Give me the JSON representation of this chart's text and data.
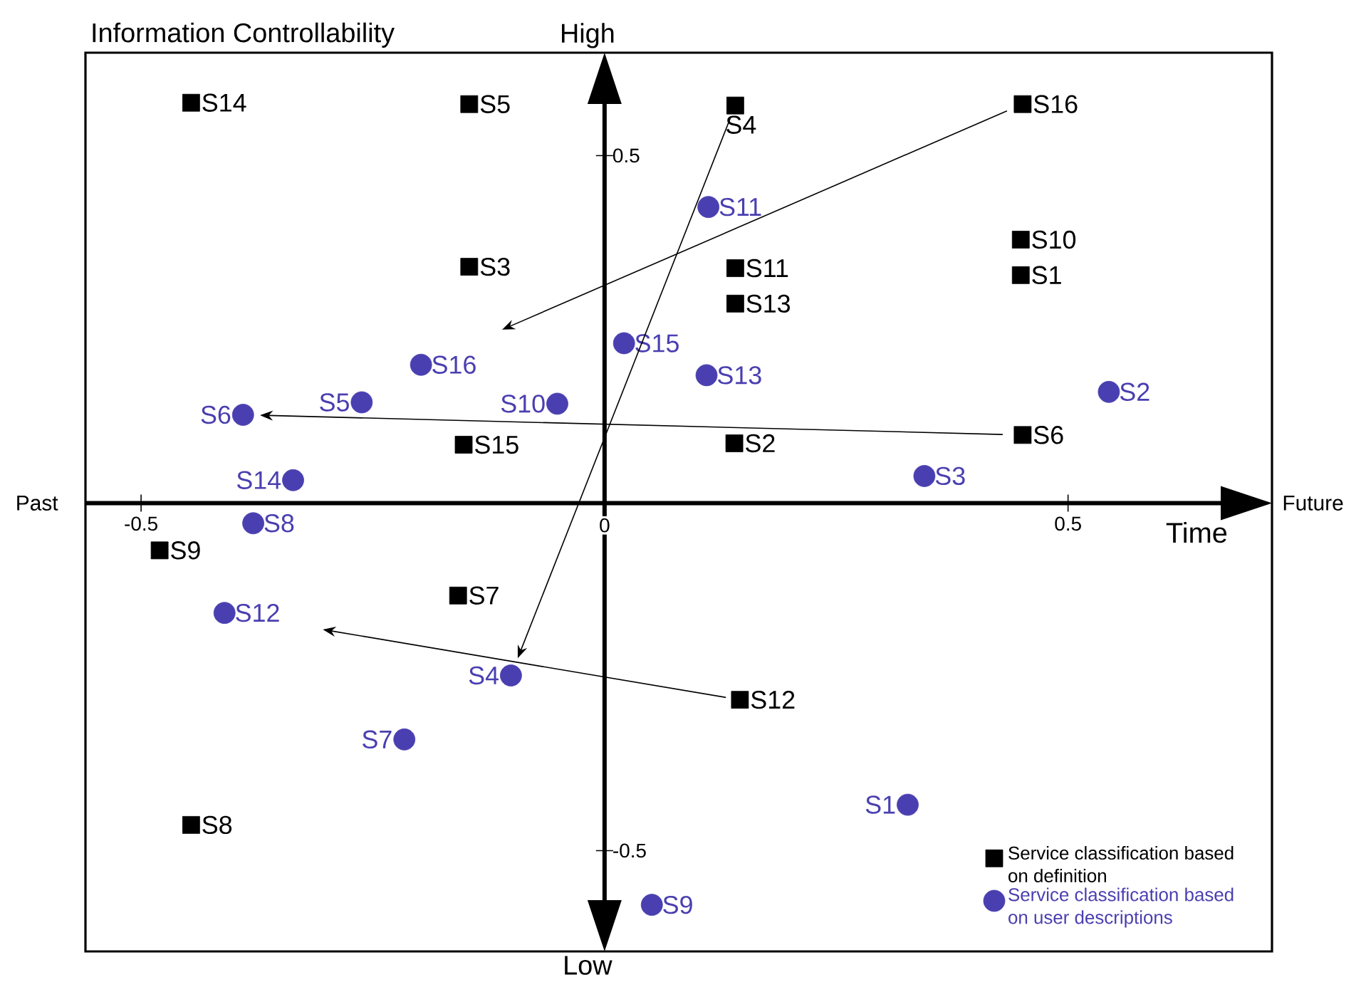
{
  "chart_data": {
    "type": "scatter",
    "xlabel": "Time",
    "ylabel": "Information Controllability",
    "xlim": [
      -0.56,
      0.72
    ],
    "ylim": [
      -0.645,
      0.648
    ],
    "xticks": [
      -0.5,
      0,
      0.5
    ],
    "yticks": [
      -0.5,
      0.5
    ],
    "grid": false,
    "legend": "bottom right",
    "annotations": [
      "Past",
      "Future",
      "High",
      "Low"
    ],
    "series": [
      {
        "name": "Service classification based on definition",
        "marker": "square",
        "color": "#000000",
        "x": [
          -0.446,
          -0.146,
          0.141,
          0.451,
          0.449,
          0.449,
          -0.146,
          0.141,
          0.141,
          -0.152,
          0.14,
          0.451,
          -0.48,
          -0.158,
          0.146,
          -0.446
        ],
        "values": [
          0.576,
          0.574,
          0.572,
          0.574,
          0.379,
          0.328,
          0.34,
          0.338,
          0.287,
          0.084,
          0.086,
          0.098,
          -0.068,
          -0.133,
          -0.283,
          -0.463
        ],
        "value_labels": [
          "S14",
          "S5",
          "S4",
          "S16",
          "S10",
          "S1",
          "S3",
          "S11",
          "S13",
          "S15",
          "S2",
          "S6",
          "S9",
          "S7",
          "S12",
          "S8"
        ]
      },
      {
        "name": "Service classification based on user descriptions",
        "marker": "circle",
        "color": "#4a3fb0",
        "x": [
          0.112,
          0.021,
          0.11,
          -0.198,
          -0.262,
          -0.051,
          -0.39,
          0.544,
          0.345,
          -0.336,
          -0.379,
          -0.41,
          -0.101,
          -0.216,
          0.327,
          0.051
        ],
        "values": [
          0.426,
          0.23,
          0.184,
          0.199,
          0.145,
          0.143,
          0.127,
          0.16,
          0.039,
          0.033,
          -0.029,
          -0.158,
          -0.248,
          -0.34,
          -0.434,
          -0.578
        ],
        "value_labels": [
          "S11",
          "S15",
          "S13",
          "S16",
          "S5",
          "S10",
          "S6",
          "S2",
          "S3",
          "S14",
          "S8",
          "S12",
          "S4",
          "S7",
          "S1",
          "S9"
        ]
      }
    ]
  }
}
